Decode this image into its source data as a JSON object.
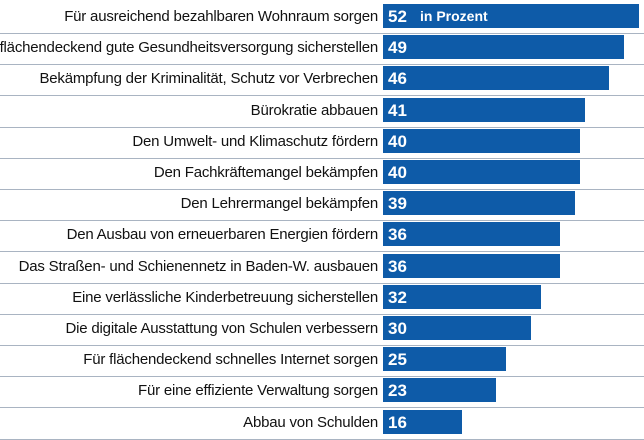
{
  "chart_data": {
    "type": "bar",
    "orientation": "horizontal",
    "unit_label": "in Prozent",
    "bar_color": "#0e5ba8",
    "xlim": [
      0,
      52
    ],
    "categories": [
      "Für ausreichend bezahlbaren Wohnraum sorgen",
      "flächendeckend gute Gesundheitsversorgung sicherstellen",
      "Bekämpfung der Kriminalität, Schutz vor Verbrechen",
      "Bürokratie abbauen",
      "Den Umwelt- und Klimaschutz fördern",
      "Den Fachkräftemangel bekämpfen",
      "Den Lehrermangel bekämpfen",
      "Den Ausbau von erneuerbaren Energien fördern",
      "Das Straßen- und Schienennetz in Baden-W. ausbauen",
      "Eine verlässliche Kinderbetreuung sicherstellen",
      "Die digitale Ausstattung von Schulen verbessern",
      "Für flächendeckend schnelles Internet sorgen",
      "Für eine effiziente Verwaltung sorgen",
      "Abbau von Schulden"
    ],
    "values": [
      52,
      49,
      46,
      41,
      40,
      40,
      39,
      36,
      36,
      32,
      30,
      25,
      23,
      16
    ]
  }
}
